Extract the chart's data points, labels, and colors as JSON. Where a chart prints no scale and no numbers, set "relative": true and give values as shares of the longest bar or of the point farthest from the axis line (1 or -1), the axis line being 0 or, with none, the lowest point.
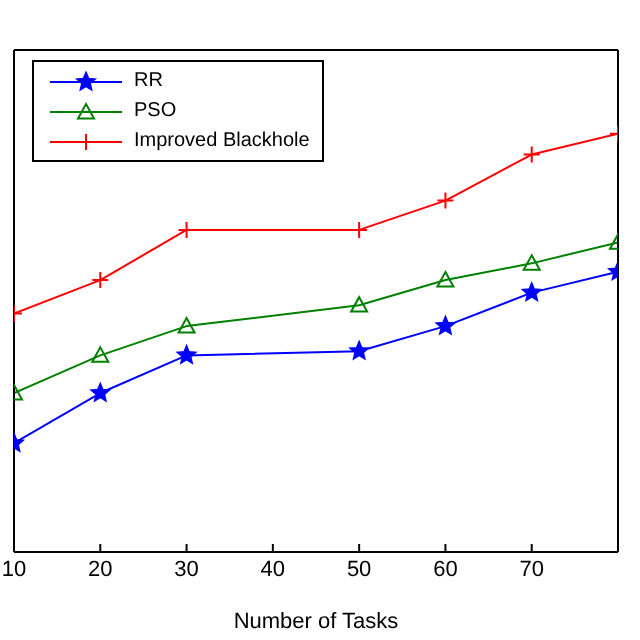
{
  "chart_data": {
    "type": "line",
    "xlabel": "Number of Tasks",
    "relative": true,
    "x": [
      10,
      20,
      30,
      50,
      60,
      70,
      80
    ],
    "xlim": [
      10,
      80
    ],
    "xticks": [
      10,
      20,
      30,
      40,
      50,
      60,
      70
    ],
    "grid": false,
    "legend": "top left",
    "line_style": "solid",
    "series": [
      {
        "name": "RR",
        "color": "#0000ff",
        "marker": "star",
        "values": [
          0.26,
          0.38,
          0.47,
          0.48,
          0.54,
          0.62,
          0.67
        ]
      },
      {
        "name": "PSO",
        "color": "#008000",
        "marker": "triangle",
        "values": [
          0.38,
          0.47,
          0.54,
          0.59,
          0.65,
          0.69,
          0.74
        ]
      },
      {
        "name": "Improved Blackhole",
        "color": "#ff0000",
        "marker": "cross",
        "values": [
          0.57,
          0.65,
          0.77,
          0.77,
          0.84,
          0.95,
          1
        ]
      }
    ]
  }
}
